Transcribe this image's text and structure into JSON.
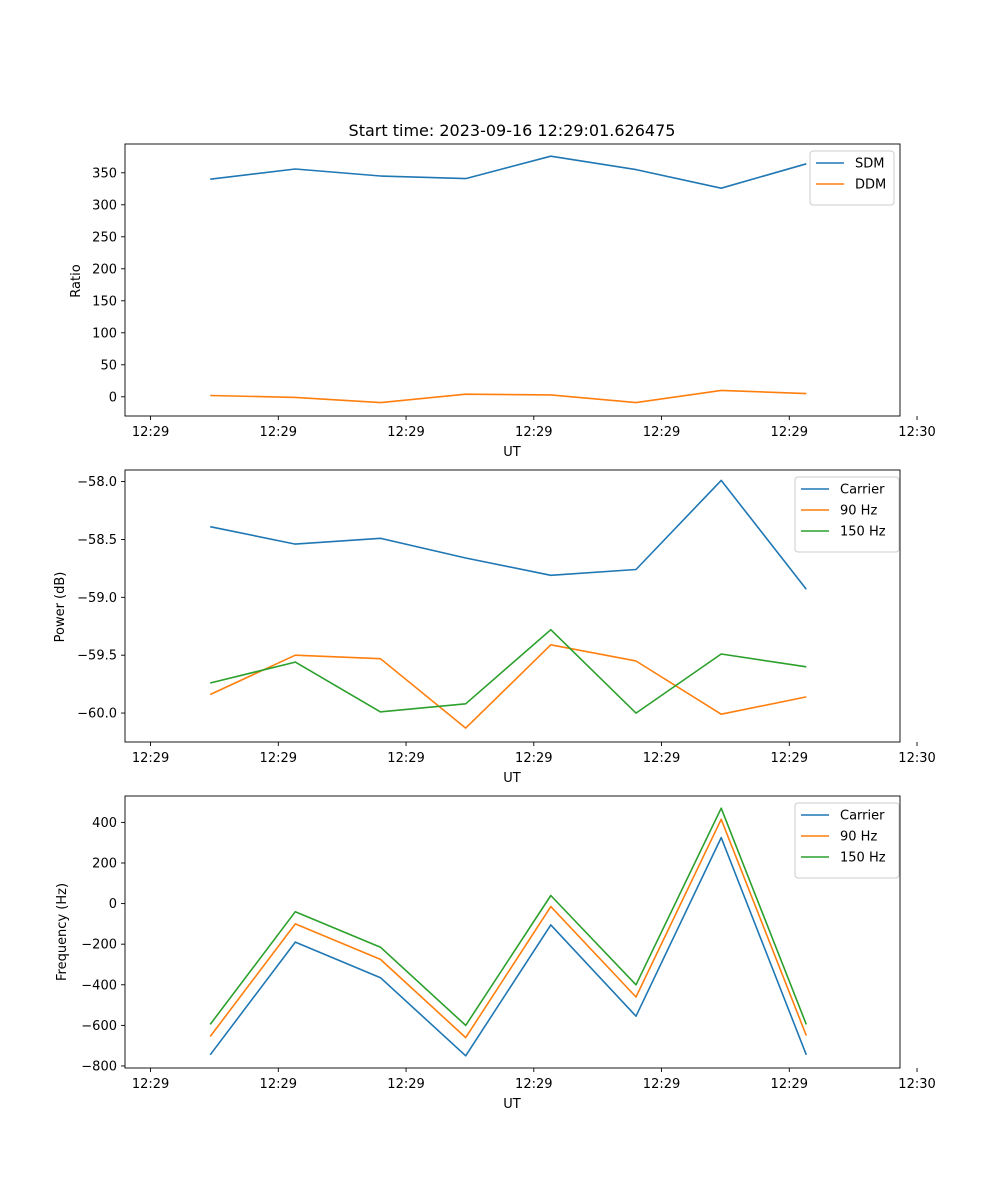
{
  "figure": {
    "title": "Start time: 2023-09-16 12:29:01.626475"
  },
  "chart_data": [
    {
      "type": "line",
      "title": "Start time: 2023-09-16 12:29:01.626475",
      "xlabel": "UT",
      "ylabel": "Ratio",
      "xlim": [
        -0.3,
        8.8
      ],
      "ylim": [
        -30,
        395
      ],
      "x_tick_values": [
        0,
        1.5,
        3,
        4.5,
        6,
        7.5,
        9
      ],
      "x_tick_labels": [
        "12:29",
        "12:29",
        "12:29",
        "12:29",
        "12:29",
        "12:29",
        "12:30"
      ],
      "y_ticks": [
        0,
        50,
        100,
        150,
        200,
        250,
        300,
        350
      ],
      "x": [
        0.7,
        1.7,
        2.7,
        3.7,
        4.7,
        5.7,
        6.7,
        7.7
      ],
      "legend_position": "top-right",
      "series": [
        {
          "name": "SDM",
          "color": "#1f77b4",
          "values": [
            340,
            356,
            345,
            341,
            376,
            355,
            326,
            364
          ]
        },
        {
          "name": "DDM",
          "color": "#ff7f0e",
          "values": [
            2,
            -1,
            -9,
            4,
            3,
            -9,
            10,
            5
          ]
        }
      ]
    },
    {
      "type": "line",
      "title": "",
      "xlabel": "UT",
      "ylabel": "Power (dB)",
      "xlim": [
        -0.3,
        8.8
      ],
      "ylim": [
        -60.25,
        -57.9
      ],
      "x_tick_values": [
        0,
        1.5,
        3,
        4.5,
        6,
        7.5,
        9
      ],
      "x_tick_labels": [
        "12:29",
        "12:29",
        "12:29",
        "12:29",
        "12:29",
        "12:29",
        "12:30"
      ],
      "y_ticks": [
        -60.0,
        -59.5,
        -59.0,
        -58.5,
        -58.0
      ],
      "y_tick_labels": [
        "−60.0",
        "−59.5",
        "−59.0",
        "−58.5",
        "−58.0"
      ],
      "x": [
        0.7,
        1.7,
        2.7,
        3.7,
        4.7,
        5.7,
        6.7,
        7.7
      ],
      "legend_position": "top-right",
      "series": [
        {
          "name": "Carrier",
          "color": "#1f77b4",
          "values": [
            -58.39,
            -58.54,
            -58.49,
            -58.66,
            -58.81,
            -58.76,
            -57.99,
            -58.93
          ]
        },
        {
          "name": "90 Hz",
          "color": "#ff7f0e",
          "values": [
            -59.84,
            -59.5,
            -59.53,
            -60.13,
            -59.41,
            -59.55,
            -60.01,
            -59.86
          ]
        },
        {
          "name": "150 Hz",
          "color": "#2ca02c",
          "values": [
            -59.74,
            -59.56,
            -59.99,
            -59.92,
            -59.28,
            -60.0,
            -59.49,
            -59.6
          ]
        }
      ]
    },
    {
      "type": "line",
      "title": "",
      "xlabel": "UT",
      "ylabel": "Frequency (Hz)",
      "xlim": [
        -0.3,
        8.8
      ],
      "ylim": [
        -810,
        530
      ],
      "x_tick_values": [
        0,
        1.5,
        3,
        4.5,
        6,
        7.5,
        9
      ],
      "x_tick_labels": [
        "12:29",
        "12:29",
        "12:29",
        "12:29",
        "12:29",
        "12:29",
        "12:30"
      ],
      "y_ticks": [
        -800,
        -600,
        -400,
        -200,
        0,
        200,
        400
      ],
      "y_tick_labels": [
        "−800",
        "−600",
        "−400",
        "−200",
        "0",
        "200",
        "400"
      ],
      "x": [
        0.7,
        1.7,
        2.7,
        3.7,
        4.7,
        5.7,
        6.7,
        7.7
      ],
      "legend_position": "top-right",
      "series": [
        {
          "name": "Carrier",
          "color": "#1f77b4",
          "values": [
            -745,
            -190,
            -365,
            -750,
            -105,
            -555,
            325,
            -745
          ]
        },
        {
          "name": "90 Hz",
          "color": "#ff7f0e",
          "values": [
            -655,
            -100,
            -275,
            -660,
            -15,
            -460,
            415,
            -650
          ]
        },
        {
          "name": "150 Hz",
          "color": "#2ca02c",
          "values": [
            -595,
            -40,
            -215,
            -600,
            40,
            -400,
            470,
            -595
          ]
        }
      ]
    }
  ]
}
